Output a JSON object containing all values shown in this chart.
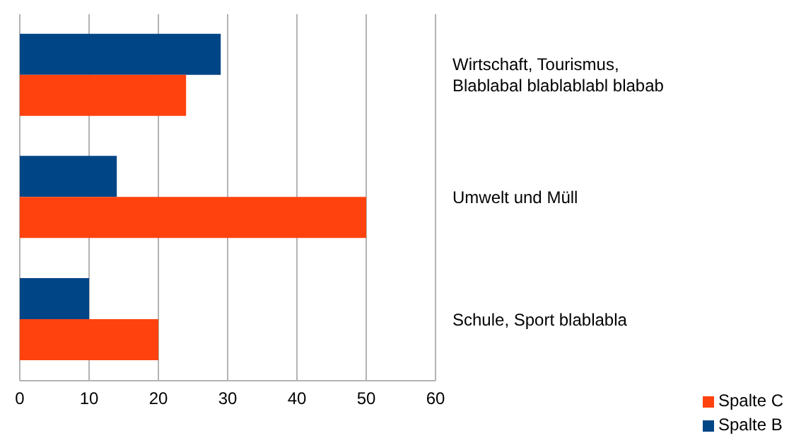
{
  "chart_data": {
    "type": "bar",
    "orientation": "horizontal",
    "categories": [
      "Wirtschaft, Tourismus, Blablabal blablablabl blabab",
      "Umwelt und Müll",
      "Schule, Sport blablabla"
    ],
    "series": [
      {
        "name": "Spalte B",
        "color": "#004586",
        "values": [
          29,
          14,
          10
        ]
      },
      {
        "name": "Spalte C",
        "color": "#ff420e",
        "values": [
          24,
          50,
          20
        ]
      }
    ],
    "xlim": [
      0,
      60
    ],
    "xticks": [
      0,
      10,
      20,
      30,
      40,
      50,
      60
    ],
    "grid": "x",
    "legend": "bottom right"
  }
}
